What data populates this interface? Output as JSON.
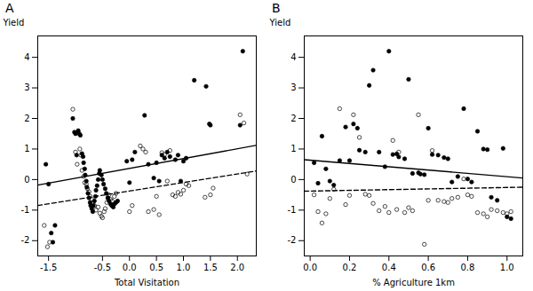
{
  "chart_data": [
    {
      "type": "scatter",
      "title": "A",
      "x_label": "Total Visitation",
      "y_label": "Yield",
      "xlim": [
        -1.7,
        2.35
      ],
      "ylim": [
        -2.5,
        4.7
      ],
      "xticks": [
        -1.5,
        -0.5,
        {
          "value": 0.0,
          "label": "0.0"
        },
        0.5,
        {
          "value": 1.0,
          "label": "1.0"
        },
        1.5,
        {
          "value": 2.0,
          "label": "2.0"
        }
      ],
      "yticks": [
        -2,
        -1,
        0,
        1,
        2,
        3,
        4
      ],
      "grid": false,
      "series": [
        {
          "type": "scatter",
          "marker": "open_circle",
          "color": "black",
          "x": [
            -1.58,
            -1.52,
            -1.48,
            -1.05,
            -1.0,
            -0.97,
            -0.92,
            -0.9,
            -0.88,
            -0.85,
            -0.83,
            -0.8,
            -0.78,
            -0.75,
            -0.73,
            -0.7,
            -0.68,
            -0.65,
            -0.62,
            -0.58,
            -0.55,
            -0.52,
            -0.5,
            -0.47,
            -0.45,
            -0.42,
            -0.4,
            -0.38,
            -0.35,
            -0.32,
            -0.28,
            -0.25,
            0.0,
            0.05,
            0.2,
            0.25,
            0.3,
            0.35,
            0.45,
            0.5,
            0.55,
            0.6,
            0.65,
            0.7,
            0.75,
            0.8,
            0.85,
            0.9,
            0.95,
            1.0,
            1.05,
            1.1,
            1.4,
            1.5,
            1.55,
            2.05,
            2.12,
            2.18
          ],
          "values": [
            -1.5,
            -2.2,
            -2.05,
            2.3,
            0.9,
            0.5,
            1.0,
            0.8,
            0.3,
            0.1,
            -0.1,
            -0.15,
            -0.3,
            -0.4,
            -0.55,
            -0.65,
            -0.75,
            -0.85,
            -1.0,
            -0.9,
            -1.1,
            -1.2,
            -1.25,
            -1.05,
            -0.95,
            -0.75,
            -0.6,
            -0.5,
            -0.65,
            -0.7,
            -0.55,
            -0.45,
            -1.05,
            -0.85,
            1.1,
            1.0,
            0.9,
            -1.05,
            -0.98,
            -0.55,
            -1.15,
            0.88,
            0.82,
            -0.05,
            0.95,
            -0.5,
            -0.55,
            -0.42,
            -0.48,
            -0.35,
            -0.15,
            -0.2,
            -0.58,
            -0.5,
            -0.28,
            2.12,
            1.85,
            0.18
          ]
        },
        {
          "type": "scatter",
          "marker": "circle",
          "color": "black",
          "x": [
            -1.55,
            -1.5,
            -1.45,
            -1.42,
            -1.38,
            -1.05,
            -1.02,
            -1.0,
            -0.98,
            -0.95,
            -0.93,
            -0.91,
            -0.88,
            -0.86,
            -0.85,
            -0.83,
            -0.82,
            -0.8,
            -0.79,
            -0.77,
            -0.75,
            -0.73,
            -0.72,
            -0.7,
            -0.68,
            -0.67,
            -0.65,
            -0.63,
            -0.62,
            -0.6,
            -0.58,
            -0.56,
            -0.55,
            -0.52,
            -0.5,
            -0.48,
            -0.45,
            -0.43,
            -0.4,
            -0.38,
            -0.35,
            -0.33,
            -0.3,
            -0.28,
            -0.25,
            -0.22,
            -0.05,
            0.0,
            0.05,
            0.1,
            0.28,
            0.35,
            0.45,
            0.5,
            0.55,
            0.6,
            0.65,
            0.7,
            0.75,
            0.85,
            0.9,
            0.95,
            1.0,
            1.05,
            1.2,
            1.42,
            1.48,
            1.5,
            2.05,
            2.1
          ],
          "values": [
            0.5,
            -0.15,
            -1.75,
            -2.05,
            -1.5,
            2.0,
            1.55,
            1.5,
            0.8,
            1.6,
            1.5,
            1.45,
            0.85,
            0.75,
            0.55,
            0.35,
            0.15,
            -0.05,
            -0.25,
            -0.45,
            -0.6,
            -0.75,
            -0.85,
            -0.95,
            -1.05,
            -0.85,
            -0.7,
            -0.55,
            -0.35,
            -0.2,
            0.0,
            0.2,
            0.3,
            0.15,
            0.0,
            -0.15,
            -0.3,
            -0.45,
            -0.6,
            -0.7,
            -0.8,
            -0.85,
            -0.9,
            -0.8,
            -0.75,
            -0.7,
            0.6,
            -0.1,
            0.65,
            0.9,
            2.1,
            0.5,
            0.05,
            0.55,
            -0.05,
            0.8,
            0.7,
            0.9,
            0.75,
            0.65,
            0.8,
            -0.05,
            0.6,
            0.7,
            3.25,
            3.05,
            1.82,
            1.78,
            1.78,
            4.2
          ]
        },
        {
          "type": "line",
          "line_style": "solid",
          "color": "black",
          "x": [
            -1.7,
            2.35
          ],
          "values": [
            -0.18,
            1.12
          ]
        },
        {
          "type": "line",
          "line_style": "dashed",
          "color": "black",
          "x": [
            -1.7,
            2.35
          ],
          "values": [
            -0.85,
            0.28
          ]
        }
      ]
    },
    {
      "type": "scatter",
      "title": "B",
      "x_label": "% Agriculture 1km",
      "y_label": "Yield",
      "xlim": [
        -0.03,
        1.08
      ],
      "ylim": [
        -2.5,
        4.7
      ],
      "xticks": [
        {
          "value": 0.0,
          "label": "0.0"
        },
        0.2,
        0.4,
        0.6,
        0.8,
        {
          "value": 1.0,
          "label": "1.0"
        }
      ],
      "yticks": [
        -2,
        -1,
        0,
        1,
        2,
        3,
        4
      ],
      "grid": false,
      "series": [
        {
          "type": "scatter",
          "marker": "open_circle",
          "color": "black",
          "x": [
            0.02,
            0.04,
            0.06,
            0.08,
            0.1,
            0.12,
            0.15,
            0.18,
            0.2,
            0.22,
            0.25,
            0.28,
            0.3,
            0.32,
            0.35,
            0.38,
            0.4,
            0.42,
            0.44,
            0.45,
            0.48,
            0.5,
            0.52,
            0.55,
            0.58,
            0.6,
            0.62,
            0.65,
            0.68,
            0.7,
            0.72,
            0.75,
            0.78,
            0.8,
            0.82,
            0.85,
            0.88,
            0.9,
            0.92,
            0.95,
            0.98,
            1.0,
            1.02
          ],
          "values": [
            -0.5,
            -1.05,
            -1.42,
            -1.12,
            -0.62,
            -0.32,
            2.32,
            -0.82,
            -0.52,
            2.12,
            1.38,
            -0.48,
            -0.52,
            -0.78,
            -1.02,
            -0.88,
            -1.08,
            1.28,
            -0.98,
            0.9,
            -1.08,
            -0.92,
            -1.02,
            2.12,
            -2.12,
            -0.68,
            0.95,
            -0.68,
            -0.72,
            -0.75,
            -0.62,
            -0.58,
            0.02,
            -0.5,
            -0.55,
            -1.08,
            -1.12,
            -1.22,
            -0.98,
            -1.02,
            -1.08,
            -1.12,
            -1.05
          ]
        },
        {
          "type": "scatter",
          "marker": "circle",
          "color": "black",
          "x": [
            0.02,
            0.04,
            0.06,
            0.08,
            0.1,
            0.12,
            0.15,
            0.18,
            0.2,
            0.22,
            0.24,
            0.25,
            0.28,
            0.3,
            0.32,
            0.35,
            0.38,
            0.4,
            0.42,
            0.44,
            0.45,
            0.48,
            0.5,
            0.52,
            0.55,
            0.56,
            0.58,
            0.6,
            0.62,
            0.65,
            0.68,
            0.7,
            0.72,
            0.75,
            0.78,
            0.8,
            0.82,
            0.85,
            0.88,
            0.9,
            0.92,
            0.95,
            0.98,
            1.0,
            1.02
          ],
          "values": [
            0.55,
            -0.12,
            1.42,
            0.35,
            -0.05,
            -0.18,
            0.62,
            1.72,
            0.62,
            1.82,
            1.68,
            0.96,
            0.9,
            3.08,
            3.58,
            0.9,
            0.42,
            4.2,
            0.82,
            0.84,
            0.74,
            0.68,
            3.28,
            0.2,
            0.22,
            0.18,
            0.16,
            1.68,
            0.82,
            0.8,
            0.72,
            0.68,
            -0.08,
            0.1,
            2.32,
            0.02,
            -0.08,
            1.58,
            1.0,
            0.98,
            -0.58,
            -0.68,
            1.02,
            -1.22,
            -1.28
          ]
        },
        {
          "type": "line",
          "line_style": "solid",
          "color": "black",
          "x": [
            -0.03,
            1.08
          ],
          "values": [
            0.65,
            0.05
          ]
        },
        {
          "type": "line",
          "line_style": "dashed",
          "color": "black",
          "x": [
            -0.03,
            1.08
          ],
          "values": [
            -0.38,
            -0.25
          ]
        }
      ]
    }
  ]
}
